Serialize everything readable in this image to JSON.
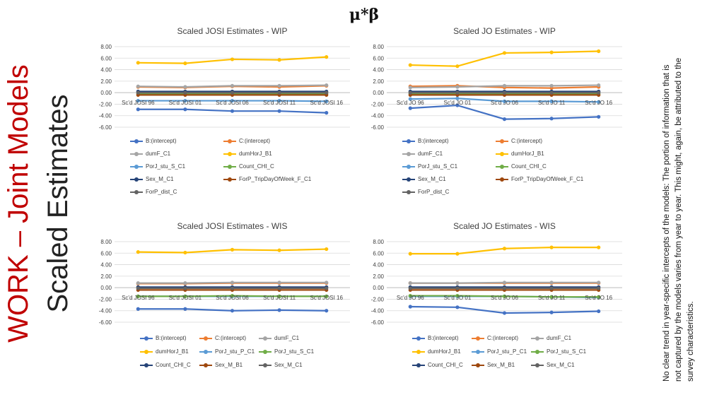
{
  "page": {
    "title_red": "WORK – Joint Models",
    "title_black": "Scaled Estimates",
    "header_symbol": "μ*β",
    "note": "No clear trend in year-specific intercepts of the models: The portion of information that is not captured by the models varies from year to year. This might, again, be attributed to the survey characteristics."
  },
  "chart_data": [
    {
      "type": "line",
      "title": "Scaled JOSI Estimates - WIP",
      "categories": [
        "Sc'd JOSI 96",
        "Sc'd JOSI 01",
        "Sc'd JOSI 06",
        "Sc'd JOSI 11",
        "Sc'd JOSI 16"
      ],
      "ylim": [
        -6,
        8
      ],
      "yticks": [
        "8.00",
        "6.00",
        "4.00",
        "2.00",
        "0.00",
        "-2.00",
        "-4.00",
        "-6.00"
      ],
      "series": [
        {
          "name": "B:(intercept)",
          "color": "#4472c4",
          "values": [
            -2.9,
            -2.9,
            -3.2,
            -3.2,
            -3.5
          ]
        },
        {
          "name": "C:(intercept)",
          "color": "#ed7d31",
          "values": [
            1.0,
            0.9,
            1.1,
            1.0,
            1.2
          ]
        },
        {
          "name": "dumF_C1",
          "color": "#a5a5a5",
          "values": [
            1.1,
            1.0,
            1.2,
            1.2,
            1.3
          ]
        },
        {
          "name": "dumHorJ_B1",
          "color": "#ffc000",
          "values": [
            5.2,
            5.1,
            5.8,
            5.7,
            6.2
          ]
        },
        {
          "name": "PorJ_stu_S_C1",
          "color": "#5b9bd5",
          "values": [
            -1.4,
            -1.4,
            -1.4,
            -1.4,
            -1.5
          ]
        },
        {
          "name": "Count_CHI_C",
          "color": "#70ad47",
          "values": [
            -0.2,
            -0.2,
            -0.2,
            -0.2,
            -0.2
          ]
        },
        {
          "name": "Sex_M_C1",
          "color": "#264478",
          "values": [
            0.2,
            0.2,
            0.2,
            0.2,
            0.2
          ]
        },
        {
          "name": "ForP_TripDayOfWeek_F_C1",
          "color": "#9e480e",
          "values": [
            -0.4,
            -0.4,
            -0.4,
            -0.4,
            -0.4
          ]
        },
        {
          "name": "ForP_dist_C",
          "color": "#636363",
          "values": [
            0.0,
            0.0,
            0.0,
            0.0,
            0.0
          ]
        }
      ],
      "legend_cols": 2
    },
    {
      "type": "line",
      "title": "Scaled JO Estimates - WIP",
      "categories": [
        "Sc'd JO 96",
        "Sc'd JO 01",
        "Sc'd JO 06",
        "Sc'd JO 11",
        "Sc'd JO 16"
      ],
      "ylim": [
        -6,
        8
      ],
      "yticks": [
        "8.00",
        "6.00",
        "4.00",
        "2.00",
        "0.00",
        "-2.00",
        "-4.00",
        "-6.00"
      ],
      "series": [
        {
          "name": "B:(intercept)",
          "color": "#4472c4",
          "values": [
            -2.7,
            -2.2,
            -4.6,
            -4.5,
            -4.2
          ]
        },
        {
          "name": "C:(intercept)",
          "color": "#ed7d31",
          "values": [
            1.1,
            1.2,
            0.9,
            0.8,
            1.0
          ]
        },
        {
          "name": "dumF_C1",
          "color": "#a5a5a5",
          "values": [
            0.9,
            1.0,
            1.2,
            1.2,
            1.3
          ]
        },
        {
          "name": "dumHorJ_B1",
          "color": "#ffc000",
          "values": [
            4.8,
            4.6,
            6.9,
            7.0,
            7.2
          ]
        },
        {
          "name": "PorJ_stu_S_C1",
          "color": "#5b9bd5",
          "values": [
            -1.1,
            -1.0,
            -1.5,
            -1.5,
            -1.6
          ]
        },
        {
          "name": "Count_CHI_C",
          "color": "#70ad47",
          "values": [
            -0.2,
            -0.2,
            -0.2,
            -0.2,
            -0.2
          ]
        },
        {
          "name": "Sex_M_C1",
          "color": "#264478",
          "values": [
            0.2,
            0.2,
            0.2,
            0.2,
            0.2
          ]
        },
        {
          "name": "ForP_TripDayOfWeek_F_C1",
          "color": "#9e480e",
          "values": [
            -0.4,
            -0.4,
            -0.4,
            -0.4,
            -0.4
          ]
        },
        {
          "name": "ForP_dist_C",
          "color": "#636363",
          "values": [
            0.0,
            0.0,
            0.0,
            0.0,
            0.0
          ]
        }
      ],
      "legend_cols": 2
    },
    {
      "type": "line",
      "title": "Scaled JOSI Estimates - WIS",
      "categories": [
        "Sc'd JOSI 96",
        "Sc'd JOSI 01",
        "Sc'd JOSI 06",
        "Sc'd JOSI 11",
        "Sc'd JOSI 16"
      ],
      "ylim": [
        -6,
        8
      ],
      "yticks": [
        "8.00",
        "6.00",
        "4.00",
        "2.00",
        "0.00",
        "-2.00",
        "-4.00",
        "-6.00"
      ],
      "series": [
        {
          "name": "B:(intercept)",
          "color": "#4472c4",
          "values": [
            -3.7,
            -3.7,
            -4.0,
            -3.9,
            -4.0
          ]
        },
        {
          "name": "C:(intercept)",
          "color": "#ed7d31",
          "values": [
            0.7,
            0.7,
            0.8,
            0.8,
            0.8
          ]
        },
        {
          "name": "dumF_C1",
          "color": "#a5a5a5",
          "values": [
            0.8,
            0.8,
            0.9,
            0.9,
            0.9
          ]
        },
        {
          "name": "dumHorJ_B1",
          "color": "#ffc000",
          "values": [
            6.2,
            6.1,
            6.6,
            6.5,
            6.7
          ]
        },
        {
          "name": "PorJ_stu_P_C1",
          "color": "#5b9bd5",
          "values": [
            -1.5,
            -1.5,
            -1.5,
            -1.5,
            -1.5
          ]
        },
        {
          "name": "PorJ_stu_S_C1",
          "color": "#70ad47",
          "values": [
            -1.5,
            -1.5,
            -1.4,
            -1.5,
            -1.5
          ]
        },
        {
          "name": "Count_CHI_C",
          "color": "#264478",
          "values": [
            0.1,
            0.1,
            0.1,
            0.1,
            0.1
          ]
        },
        {
          "name": "Sex_M_B1",
          "color": "#9e480e",
          "values": [
            -0.4,
            -0.4,
            -0.4,
            -0.4,
            -0.4
          ]
        },
        {
          "name": "Sex_M_C1",
          "color": "#636363",
          "values": [
            -0.1,
            -0.1,
            -0.1,
            -0.1,
            -0.1
          ]
        }
      ],
      "legend_cols": 3
    },
    {
      "type": "line",
      "title": "Scaled JO Estimates - WIS",
      "categories": [
        "Sc'd JO 96",
        "Sc'd JO 01",
        "Sc'd JO 06",
        "Sc'd JO 11",
        "Sc'd JO 16"
      ],
      "ylim": [
        -6,
        8
      ],
      "yticks": [
        "8.00",
        "6.00",
        "4.00",
        "2.00",
        "0.00",
        "-2.00",
        "-4.00",
        "-6.00"
      ],
      "series": [
        {
          "name": "B:(intercept)",
          "color": "#4472c4",
          "values": [
            -3.3,
            -3.4,
            -4.4,
            -4.3,
            -4.1
          ]
        },
        {
          "name": "C:(intercept)",
          "color": "#ed7d31",
          "values": [
            0.8,
            0.8,
            0.8,
            0.8,
            0.8
          ]
        },
        {
          "name": "dumF_C1",
          "color": "#a5a5a5",
          "values": [
            0.8,
            0.8,
            0.9,
            0.9,
            0.9
          ]
        },
        {
          "name": "dumHorJ_B1",
          "color": "#ffc000",
          "values": [
            5.9,
            5.9,
            6.8,
            7.0,
            7.0
          ]
        },
        {
          "name": "PorJ_stu_P_C1",
          "color": "#5b9bd5",
          "values": [
            -1.5,
            -1.5,
            -1.5,
            -1.6,
            -1.7
          ]
        },
        {
          "name": "PorJ_stu_S_C1",
          "color": "#70ad47",
          "values": [
            -1.4,
            -1.4,
            -1.5,
            -1.6,
            -1.6
          ]
        },
        {
          "name": "Count_CHI_C",
          "color": "#264478",
          "values": [
            0.1,
            0.1,
            0.1,
            0.1,
            0.1
          ]
        },
        {
          "name": "Sex_M_B1",
          "color": "#9e480e",
          "values": [
            -0.4,
            -0.4,
            -0.4,
            -0.4,
            -0.4
          ]
        },
        {
          "name": "Sex_M_C1",
          "color": "#636363",
          "values": [
            -0.1,
            -0.1,
            -0.1,
            -0.1,
            -0.1
          ]
        }
      ],
      "legend_cols": 3
    }
  ]
}
